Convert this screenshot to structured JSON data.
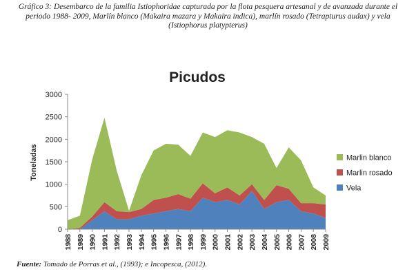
{
  "caption": "Gráfico 3: Desembarco de la familia Istiophoridae capturada por la flota pesquera artesanal y de avanzada durante el periodo 1988- 2009, Marlín blanco (Makaira mazara y Makaira indica), marlín rosado (Tetrapturus audax) y vela (Istiophorus platypterus)",
  "source": {
    "label": "Fuente:",
    "text": " Tomado de Porras et al., (1993); e Incopesca, (2012)."
  },
  "chart_data": {
    "type": "area",
    "stacked": true,
    "title": "Picudos",
    "ylabel": "Toneladas",
    "xlabel": "",
    "ylim": [
      0,
      3000
    ],
    "yticks": [
      0,
      500,
      1000,
      1500,
      2000,
      2500,
      3000
    ],
    "grid": false,
    "legend_position": "right",
    "categories": [
      "1988",
      "1989",
      "1990",
      "1991",
      "1992",
      "1993",
      "1994",
      "1995",
      "1996",
      "1997",
      "1998",
      "1999",
      "2000",
      "2001",
      "2002",
      "2003",
      "2004",
      "2005",
      "2006",
      "2007",
      "2008",
      "2009"
    ],
    "series": [
      {
        "name": "Vela",
        "color": "#4f81bd",
        "values": [
          0,
          0,
          200,
          400,
          220,
          220,
          300,
          350,
          400,
          450,
          400,
          700,
          600,
          650,
          550,
          850,
          450,
          600,
          650,
          400,
          350,
          250
        ]
      },
      {
        "name": "Marlin rosado",
        "color": "#c0504d",
        "values": [
          0,
          30,
          80,
          200,
          180,
          160,
          150,
          300,
          300,
          330,
          280,
          320,
          200,
          280,
          200,
          150,
          200,
          380,
          250,
          180,
          230,
          300
        ]
      },
      {
        "name": "Marlin blanco",
        "color": "#9bbb59",
        "values": [
          200,
          270,
          1270,
          1880,
          900,
          30,
          750,
          1100,
          1200,
          1100,
          950,
          1130,
          1250,
          1270,
          1400,
          1050,
          1250,
          380,
          920,
          950,
          350,
          200
        ]
      }
    ],
    "legend_order": [
      "Marlin blanco",
      "Marlin rosado",
      "Vela"
    ]
  }
}
